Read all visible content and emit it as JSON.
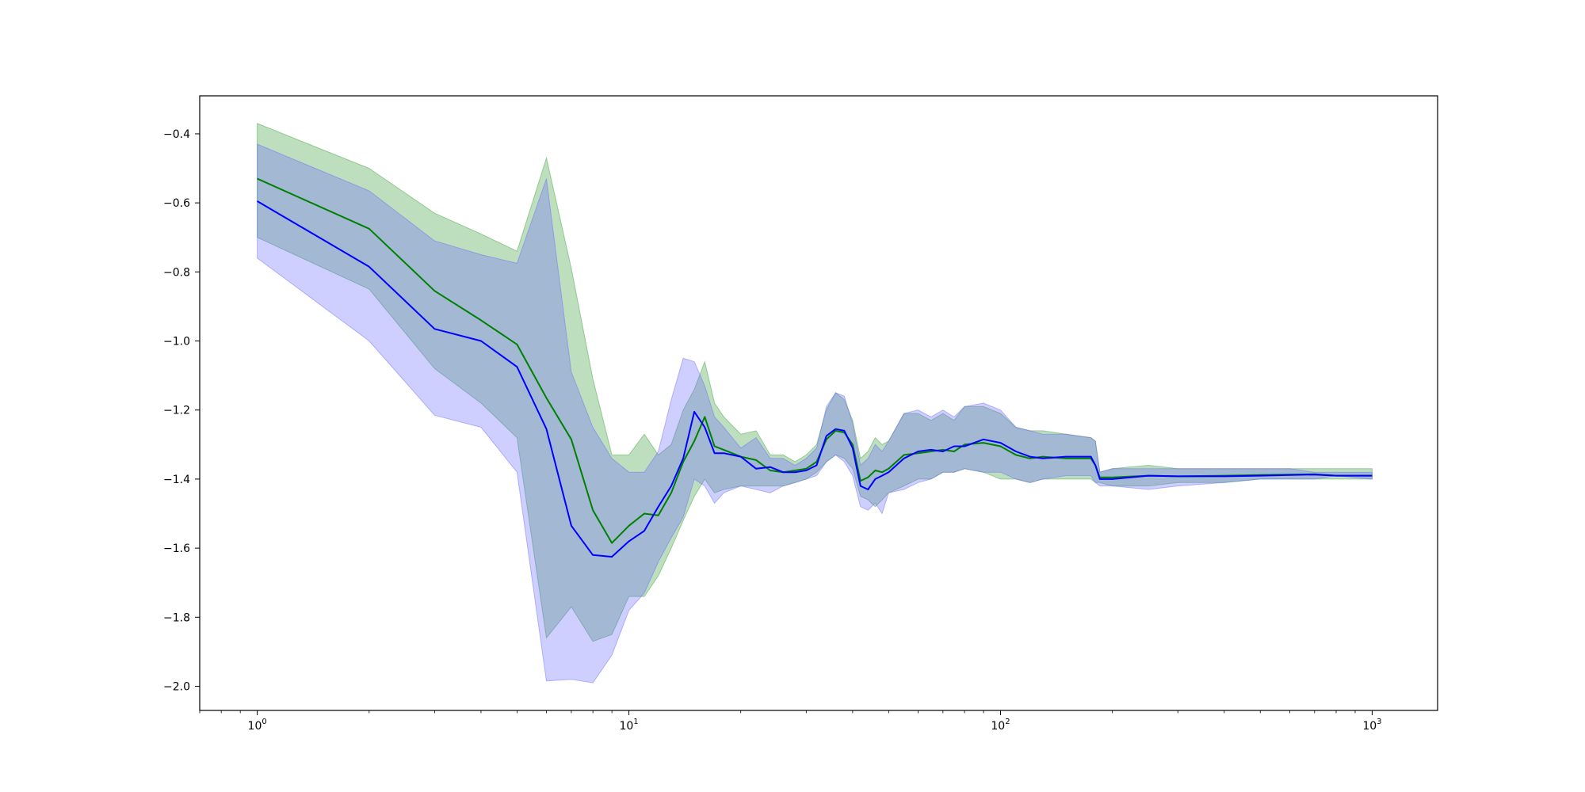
{
  "chart_data": {
    "type": "line",
    "title": "",
    "xlabel": "",
    "ylabel": "",
    "x_scale": "log",
    "xlim": [
      0.7,
      1500
    ],
    "ylim": [
      -2.07,
      -0.29
    ],
    "grid": false,
    "legend": "none",
    "x_ticks": [
      {
        "value": 1,
        "base": "10",
        "exp": "0"
      },
      {
        "value": 10,
        "base": "10",
        "exp": "1"
      },
      {
        "value": 100,
        "base": "10",
        "exp": "2"
      },
      {
        "value": 1000,
        "base": "10",
        "exp": "3"
      }
    ],
    "y_ticks": [
      {
        "value": -0.4,
        "label": "−0.4"
      },
      {
        "value": -0.6,
        "label": "−0.6"
      },
      {
        "value": -0.8,
        "label": "−0.8"
      },
      {
        "value": -1.0,
        "label": "−1.0"
      },
      {
        "value": -1.2,
        "label": "−1.2"
      },
      {
        "value": -1.4,
        "label": "−1.4"
      },
      {
        "value": -1.6,
        "label": "−1.6"
      },
      {
        "value": -1.8,
        "label": "−1.8"
      },
      {
        "value": -2.0,
        "label": "−2.0"
      }
    ],
    "series": [
      {
        "color": "#008000",
        "band_color": "#3a9e3a",
        "x": [
          1,
          2,
          3,
          4,
          5,
          6,
          7,
          8,
          9,
          10,
          11,
          12,
          13,
          14,
          15,
          16,
          17,
          18,
          20,
          22,
          24,
          26,
          28,
          30,
          32,
          34,
          36,
          38,
          40,
          42,
          44,
          46,
          48,
          50,
          55,
          60,
          65,
          70,
          75,
          80,
          90,
          100,
          110,
          120,
          130,
          150,
          175,
          180,
          185,
          200,
          250,
          300,
          400,
          500,
          600,
          700,
          800,
          1000
        ],
        "y": [
          -0.53,
          -0.675,
          -0.855,
          -0.94,
          -1.01,
          -1.165,
          -1.285,
          -1.49,
          -1.585,
          -1.535,
          -1.5,
          -1.505,
          -1.44,
          -1.35,
          -1.29,
          -1.22,
          -1.305,
          -1.315,
          -1.335,
          -1.345,
          -1.375,
          -1.38,
          -1.375,
          -1.37,
          -1.35,
          -1.285,
          -1.26,
          -1.265,
          -1.3,
          -1.405,
          -1.395,
          -1.375,
          -1.38,
          -1.37,
          -1.33,
          -1.325,
          -1.32,
          -1.315,
          -1.32,
          -1.3,
          -1.295,
          -1.305,
          -1.33,
          -1.34,
          -1.335,
          -1.34,
          -1.34,
          -1.36,
          -1.395,
          -1.395,
          -1.39,
          -1.392,
          -1.39,
          -1.388,
          -1.387,
          -1.386,
          -1.39,
          -1.39
        ],
        "lower": [
          -0.7,
          -0.85,
          -1.08,
          -1.18,
          -1.28,
          -1.86,
          -1.77,
          -1.87,
          -1.85,
          -1.74,
          -1.74,
          -1.68,
          -1.6,
          -1.52,
          -1.45,
          -1.4,
          -1.44,
          -1.43,
          -1.42,
          -1.42,
          -1.42,
          -1.42,
          -1.41,
          -1.4,
          -1.38,
          -1.35,
          -1.33,
          -1.34,
          -1.37,
          -1.45,
          -1.46,
          -1.48,
          -1.46,
          -1.44,
          -1.42,
          -1.4,
          -1.4,
          -1.38,
          -1.38,
          -1.37,
          -1.38,
          -1.4,
          -1.4,
          -1.41,
          -1.4,
          -1.4,
          -1.4,
          -1.41,
          -1.41,
          -1.42,
          -1.42,
          -1.41,
          -1.41,
          -1.4,
          -1.4,
          -1.4,
          -1.4,
          -1.4
        ],
        "upper": [
          -0.37,
          -0.5,
          -0.63,
          -0.69,
          -0.74,
          -0.47,
          -0.79,
          -1.11,
          -1.33,
          -1.33,
          -1.27,
          -1.33,
          -1.3,
          -1.2,
          -1.14,
          -1.06,
          -1.18,
          -1.22,
          -1.27,
          -1.26,
          -1.33,
          -1.33,
          -1.35,
          -1.33,
          -1.3,
          -1.2,
          -1.15,
          -1.17,
          -1.23,
          -1.34,
          -1.32,
          -1.28,
          -1.3,
          -1.29,
          -1.21,
          -1.21,
          -1.23,
          -1.21,
          -1.23,
          -1.19,
          -1.19,
          -1.21,
          -1.25,
          -1.26,
          -1.26,
          -1.27,
          -1.28,
          -1.29,
          -1.38,
          -1.37,
          -1.36,
          -1.37,
          -1.37,
          -1.37,
          -1.37,
          -1.37,
          -1.37,
          -1.37
        ]
      },
      {
        "color": "#0000ff",
        "band_color": "#6a6aff",
        "x": [
          1,
          2,
          3,
          4,
          5,
          6,
          7,
          8,
          9,
          10,
          11,
          12,
          13,
          14,
          15,
          16,
          17,
          18,
          20,
          22,
          24,
          26,
          28,
          30,
          32,
          34,
          36,
          38,
          40,
          42,
          44,
          46,
          48,
          50,
          55,
          60,
          65,
          70,
          75,
          80,
          90,
          100,
          110,
          120,
          130,
          150,
          175,
          180,
          185,
          200,
          250,
          300,
          400,
          500,
          600,
          700,
          800,
          1000
        ],
        "y": [
          -0.595,
          -0.785,
          -0.965,
          -1.0,
          -1.075,
          -1.255,
          -1.535,
          -1.62,
          -1.625,
          -1.58,
          -1.55,
          -1.48,
          -1.42,
          -1.34,
          -1.205,
          -1.25,
          -1.325,
          -1.325,
          -1.335,
          -1.37,
          -1.365,
          -1.38,
          -1.38,
          -1.375,
          -1.36,
          -1.275,
          -1.255,
          -1.26,
          -1.31,
          -1.42,
          -1.43,
          -1.4,
          -1.39,
          -1.38,
          -1.34,
          -1.32,
          -1.315,
          -1.32,
          -1.305,
          -1.305,
          -1.285,
          -1.295,
          -1.32,
          -1.335,
          -1.34,
          -1.335,
          -1.335,
          -1.36,
          -1.4,
          -1.4,
          -1.39,
          -1.392,
          -1.392,
          -1.39,
          -1.388,
          -1.387,
          -1.39,
          -1.39
        ],
        "lower": [
          -0.76,
          -1.0,
          -1.215,
          -1.25,
          -1.38,
          -1.985,
          -1.98,
          -1.99,
          -1.91,
          -1.78,
          -1.73,
          -1.64,
          -1.57,
          -1.51,
          -1.4,
          -1.42,
          -1.47,
          -1.44,
          -1.42,
          -1.43,
          -1.44,
          -1.42,
          -1.41,
          -1.4,
          -1.39,
          -1.35,
          -1.33,
          -1.35,
          -1.39,
          -1.48,
          -1.49,
          -1.47,
          -1.5,
          -1.44,
          -1.43,
          -1.41,
          -1.4,
          -1.38,
          -1.38,
          -1.37,
          -1.38,
          -1.38,
          -1.4,
          -1.41,
          -1.4,
          -1.39,
          -1.39,
          -1.41,
          -1.42,
          -1.42,
          -1.43,
          -1.42,
          -1.41,
          -1.4,
          -1.4,
          -1.4,
          -1.39,
          -1.4
        ],
        "upper": [
          -0.43,
          -0.565,
          -0.71,
          -0.75,
          -0.775,
          -0.53,
          -1.09,
          -1.25,
          -1.34,
          -1.38,
          -1.38,
          -1.32,
          -1.17,
          -1.05,
          -1.06,
          -1.13,
          -1.22,
          -1.25,
          -1.31,
          -1.28,
          -1.34,
          -1.34,
          -1.36,
          -1.34,
          -1.31,
          -1.19,
          -1.15,
          -1.16,
          -1.24,
          -1.36,
          -1.34,
          -1.3,
          -1.32,
          -1.29,
          -1.21,
          -1.2,
          -1.22,
          -1.2,
          -1.22,
          -1.19,
          -1.18,
          -1.2,
          -1.25,
          -1.26,
          -1.27,
          -1.27,
          -1.28,
          -1.29,
          -1.38,
          -1.37,
          -1.37,
          -1.37,
          -1.37,
          -1.37,
          -1.37,
          -1.38,
          -1.38,
          -1.38
        ]
      }
    ]
  }
}
